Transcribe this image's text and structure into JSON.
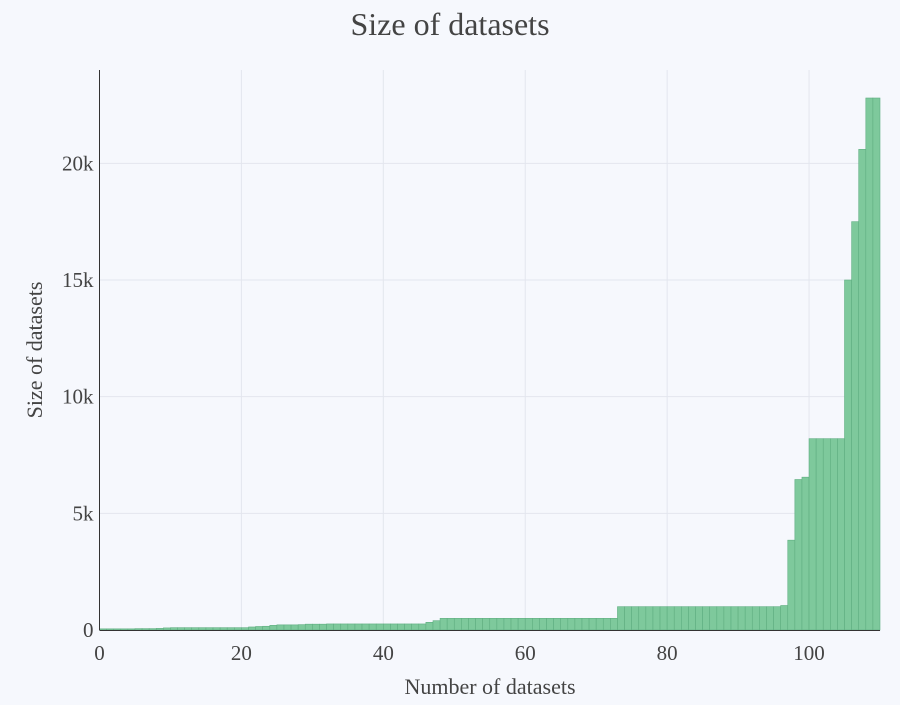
{
  "chart_data": {
    "type": "bar",
    "title": "Size of datasets",
    "xlabel": "Number of datasets",
    "ylabel": "Size of datasets",
    "xlim": [
      0,
      110
    ],
    "ylim": [
      0,
      24000
    ],
    "grid": true,
    "legend": "none",
    "x_ticks": [
      0,
      20,
      40,
      60,
      80,
      100
    ],
    "x_tick_labels": [
      "0",
      "20",
      "40",
      "60",
      "80",
      "100"
    ],
    "y_ticks": [
      0,
      5000,
      10000,
      15000,
      20000
    ],
    "y_tick_labels": [
      "0",
      "5k",
      "10k",
      "15k",
      "20k"
    ],
    "bar_color": "#7ec99c",
    "bar_edge_color": "#5fae80",
    "values": [
      50,
      50,
      50,
      50,
      50,
      60,
      60,
      60,
      70,
      90,
      100,
      100,
      100,
      100,
      100,
      100,
      100,
      100,
      100,
      100,
      100,
      130,
      150,
      160,
      200,
      220,
      220,
      220,
      230,
      250,
      250,
      250,
      260,
      260,
      260,
      260,
      260,
      260,
      260,
      260,
      260,
      260,
      260,
      260,
      260,
      260,
      330,
      400,
      500,
      500,
      500,
      500,
      500,
      500,
      500,
      500,
      500,
      500,
      500,
      500,
      500,
      500,
      500,
      500,
      500,
      500,
      500,
      500,
      500,
      500,
      500,
      500,
      500,
      1000,
      1000,
      1000,
      1000,
      1000,
      1000,
      1000,
      1000,
      1000,
      1000,
      1000,
      1000,
      1000,
      1000,
      1000,
      1000,
      1000,
      1000,
      1000,
      1000,
      1000,
      1000,
      1000,
      1050,
      3850,
      6450,
      6550,
      8200,
      8200,
      8200,
      8200,
      8200,
      15000,
      17500,
      20600,
      22800,
      22800
    ]
  }
}
